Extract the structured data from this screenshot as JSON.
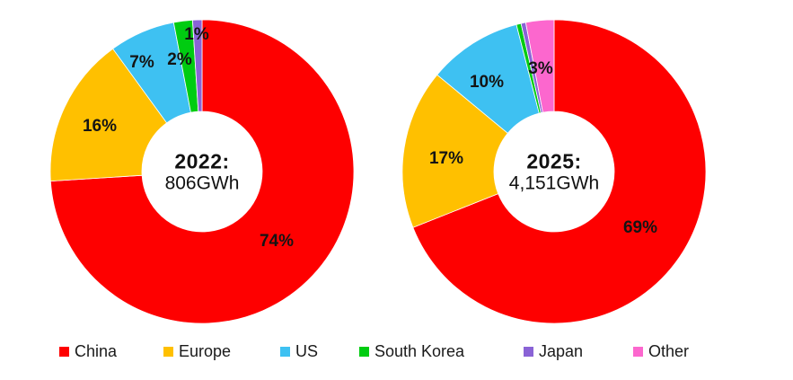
{
  "page": {
    "background": "#ffffff"
  },
  "legend": {
    "position": "bottom",
    "items": [
      {
        "label": "China",
        "color": "#fe0000"
      },
      {
        "label": "Europe",
        "color": "#ffc000"
      },
      {
        "label": "US",
        "color": "#3ec1f2"
      },
      {
        "label": "South Korea",
        "color": "#00cc11"
      },
      {
        "label": "Japan",
        "color": "#8a63d6"
      },
      {
        "label": "Other",
        "color": "#fc67ce"
      }
    ]
  },
  "chart_data": [
    {
      "type": "pie",
      "variant": "donut",
      "center_title": "2022:",
      "center_value": "806GWh",
      "start_angle_deg": 0,
      "direction": "clockwise",
      "slices": [
        {
          "name": "China",
          "value": 74,
          "label": "74%"
        },
        {
          "name": "Europe",
          "value": 16,
          "label": "16%"
        },
        {
          "name": "US",
          "value": 7,
          "label": "7%"
        },
        {
          "name": "South Korea",
          "value": 2,
          "label": "2%"
        },
        {
          "name": "Japan",
          "value": 1,
          "label": "1%"
        }
      ]
    },
    {
      "type": "pie",
      "variant": "donut",
      "center_title": "2025:",
      "center_value": "4,151GWh",
      "start_angle_deg": 0,
      "direction": "clockwise",
      "slices": [
        {
          "name": "China",
          "value": 69,
          "label": "69%"
        },
        {
          "name": "Europe",
          "value": 17,
          "label": "17%"
        },
        {
          "name": "US",
          "value": 10,
          "label": "10%"
        },
        {
          "name": "South Korea",
          "value": 0.5,
          "label": ""
        },
        {
          "name": "Japan",
          "value": 0.5,
          "label": ""
        },
        {
          "name": "Other",
          "value": 3,
          "label": "3%"
        }
      ]
    }
  ]
}
